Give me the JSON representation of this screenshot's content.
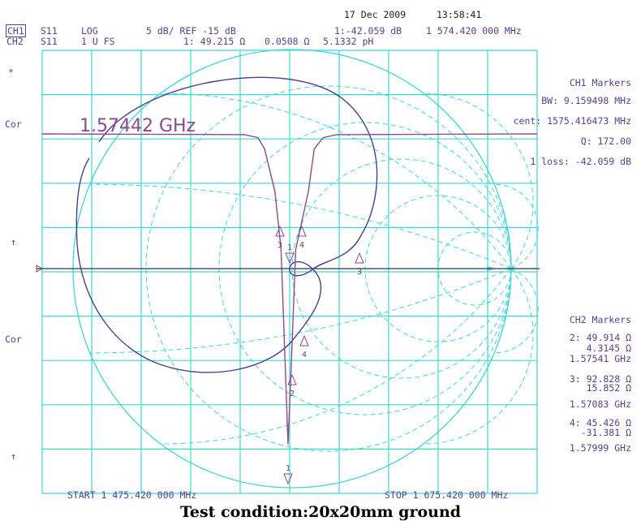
{
  "header": {
    "date": "17 Dec 2009",
    "time": "13:58:41"
  },
  "ch1_line": {
    "channel": "CH1",
    "param": "S11",
    "format": "LOG",
    "scale": "5 dB/ REF -15 dB",
    "marker_readout": "1:-42.059 dB",
    "marker_freq": "1 574.420 000 MHz"
  },
  "ch2_line": {
    "channel": "CH2",
    "param": "S11",
    "format": "1 U FS",
    "marker_readout": "1: 49.215 Ω",
    "reactance": "0.0508 Ω",
    "inductance": "5.1332 pH"
  },
  "left_labels": {
    "star": "*",
    "cor1": "Cor",
    "arrow1": "↑",
    "cor2": "Cor",
    "arrow2": "↑"
  },
  "annotation": "1.57442 GHz",
  "ch1_markers": {
    "title": "CH1 Markers",
    "bw": "BW: 9.159498 MHz",
    "cent": "cent: 1575.416473 MHz",
    "q": "Q: 172.00",
    "loss": "1 loss: -42.059 dB"
  },
  "ch2_markers": {
    "title": "CH2 Markers",
    "m2_r": "2: 49.914 Ω",
    "m2_x": "4.3145 Ω",
    "m2_f": "1.57541 GHz",
    "m3_r": "3: 92.828 Ω",
    "m3_x": "15.852 Ω",
    "m3_f": "1.57083 GHz",
    "m4_r": "4: 45.426 Ω",
    "m4_x": "-31.381 Ω",
    "m4_f": "1.57999 GHz"
  },
  "footer": {
    "start": "START 1 475.420 000 MHz",
    "stop": "STOP 1 675.420 000 MHz",
    "caption": "Test condition:20x20mm ground"
  },
  "colors": {
    "grid": "#3fd6d6",
    "trace_log": "#8a4a8c",
    "trace_smith": "#4a3d8f",
    "axis": "#555555"
  },
  "chart_data": {
    "type": "line",
    "title": "",
    "xlabel": "",
    "ylabel": "",
    "x_range_mhz": [
      1475.42,
      1675.42
    ],
    "ref_db": -15,
    "scale_db_per_div": 5,
    "grid": true,
    "series": [
      {
        "name": "CH1",
        "x_mhz": [
          1475.42,
          1520,
          1550,
          1565,
          1570.83,
          1572.5,
          1574.42,
          1575.41,
          1576.5,
          1579.99,
          1590,
          1610,
          1640,
          1675.42
        ],
        "y_db": [
          -0.5,
          -0.6,
          -1.0,
          -2.5,
          -8.2,
          -16,
          -42.059,
          -30,
          -16,
          -8.2,
          -2.5,
          -1.0,
          -0.6,
          -0.5
        ]
      }
    ],
    "markers_ch2": [
      {
        "id": "1",
        "freq_ghz": 1.57442,
        "r_ohm": 49.215,
        "x_ohm": 0.0508
      },
      {
        "id": "2",
        "freq_ghz": 1.57541,
        "r_ohm": 49.914,
        "x_ohm": 4.3145
      },
      {
        "id": "3",
        "freq_ghz": 1.57083,
        "r_ohm": 92.828,
        "x_ohm": 15.852
      },
      {
        "id": "4",
        "freq_ghz": 1.57999,
        "r_ohm": 45.426,
        "x_ohm": -31.381
      }
    ]
  }
}
